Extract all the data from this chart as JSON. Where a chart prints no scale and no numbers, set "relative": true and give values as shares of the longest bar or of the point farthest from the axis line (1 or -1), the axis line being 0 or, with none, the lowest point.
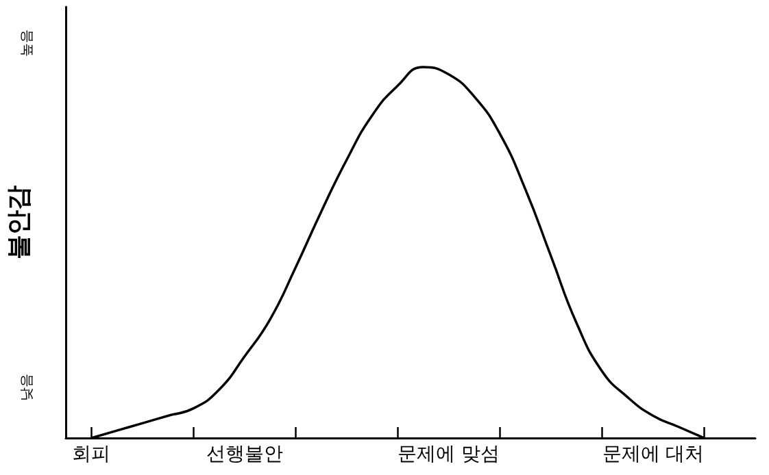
{
  "chart_data": {
    "type": "line",
    "relative": true,
    "ylabel": "불안감",
    "categories": [
      null,
      "회피",
      null,
      null,
      null,
      null,
      null,
      "선행불안",
      null,
      null,
      null,
      null,
      null,
      null,
      null,
      "문제에 맞섬",
      null,
      null,
      null,
      null,
      null,
      null,
      null,
      "문제에 대처",
      null,
      null,
      null,
      null
    ],
    "series": [
      {
        "color": "#000000",
        "values": [
          null,
          0,
          0.02,
          0.04,
          0.06,
          0.08,
          0.13,
          0.22,
          0.32,
          0.46,
          0.61,
          0.75,
          0.87,
          0.95,
          1,
          0.98,
          0.92,
          0.82,
          0.67,
          0.49,
          0.31,
          0.18,
          0.11,
          0.06,
          0.03,
          0,
          null,
          null
        ]
      }
    ],
    "annotations": [
      "높음",
      "낮음"
    ],
    "grid": false,
    "marker": "none",
    "line_style": "solid"
  }
}
